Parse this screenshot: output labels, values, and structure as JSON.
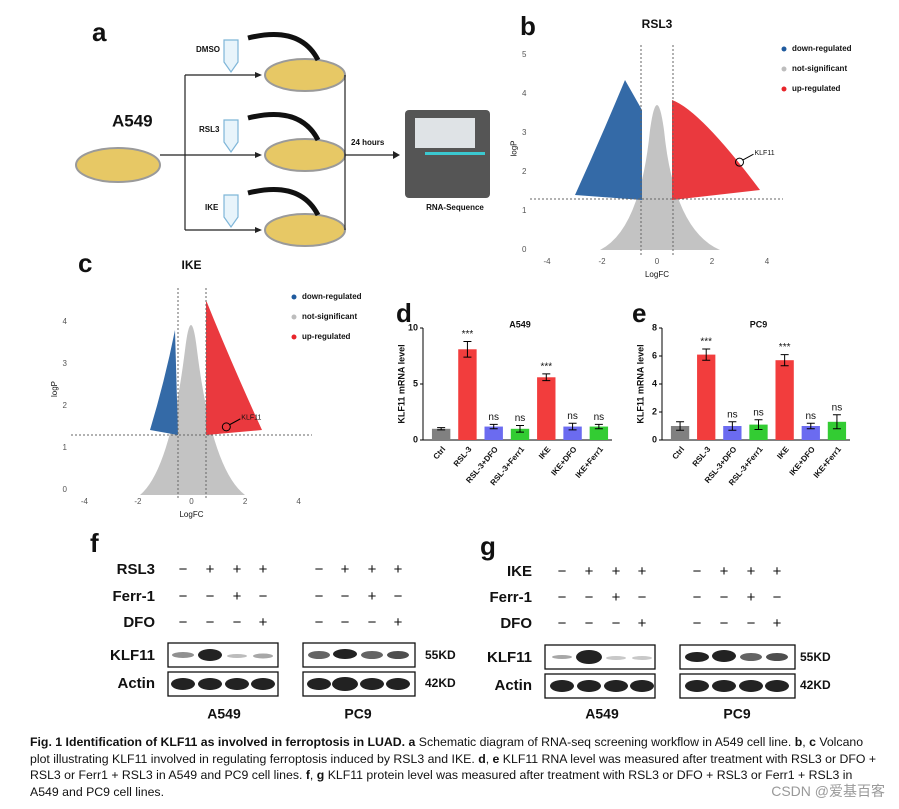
{
  "panel_labels": [
    "a",
    "b",
    "c",
    "d",
    "e",
    "f",
    "g"
  ],
  "schematic": {
    "cell_line": "A549",
    "treatments": [
      "DMSO",
      "RSL3",
      "IKE"
    ],
    "time": "24 hours",
    "output": "RNA-Sequence"
  },
  "chart_data": [
    {
      "type": "scatter",
      "title": "RSL3",
      "xlabel": "LogFC",
      "ylabel": "logP",
      "xlim": [
        -4.6,
        4.6
      ],
      "ylim": [
        0,
        5.2
      ],
      "xticks": [
        -4,
        -2,
        0,
        2,
        4
      ],
      "yticks": [
        0,
        1,
        2,
        3,
        4,
        5
      ],
      "series": [
        {
          "name": "down-regulated",
          "color": "#1f5a9e"
        },
        {
          "name": "not-significant",
          "color": "#bdbdbd"
        },
        {
          "name": "up-regulated",
          "color": "#e8242a"
        }
      ],
      "annotation": {
        "text": "KLF11",
        "x": 3.0,
        "y": 2.25
      }
    },
    {
      "type": "scatter",
      "title": "IKE",
      "xlabel": "LogFC",
      "ylabel": "logP",
      "xlim": [
        -4.5,
        4.5
      ],
      "ylim": [
        0,
        4.8
      ],
      "xticks": [
        -4,
        -2,
        0,
        2,
        4
      ],
      "yticks": [
        0,
        1,
        2,
        3,
        4
      ],
      "series": [
        {
          "name": "down-regulated",
          "color": "#1f5a9e"
        },
        {
          "name": "not-significant",
          "color": "#bdbdbd"
        },
        {
          "name": "up-regulated",
          "color": "#e8242a"
        }
      ],
      "annotation": {
        "text": "KLF11",
        "x": 1.3,
        "y": 1.5
      }
    },
    {
      "type": "bar",
      "title": "A549",
      "ylabel": "KLF11 mRNA level",
      "categories": [
        "Ctrl",
        "RSL-3",
        "RSL-3+DFO",
        "RSL-3+Ferr1",
        "IKE",
        "IKE+DFO",
        "IKE+Ferr1"
      ],
      "values": [
        1.0,
        8.1,
        1.2,
        1.0,
        5.6,
        1.2,
        1.2
      ],
      "errors": [
        0.1,
        0.7,
        0.2,
        0.3,
        0.3,
        0.3,
        0.2
      ],
      "colors": [
        "#808080",
        "#f23d3d",
        "#6b6bf0",
        "#33cc33",
        "#f23d3d",
        "#6b6bf0",
        "#33cc33"
      ],
      "sig_labels": [
        null,
        "***",
        "ns",
        "ns",
        "***",
        "ns",
        "ns"
      ],
      "ylim": [
        0,
        10
      ],
      "yticks": [
        0,
        5,
        10
      ]
    },
    {
      "type": "bar",
      "title": "PC9",
      "ylabel": "KLF11 mRNA level",
      "categories": [
        "Ctrl",
        "RSL-3",
        "RSL-3+DFO",
        "RSL-3+Ferr1",
        "IKE",
        "IKE+DFO",
        "IKE+Ferr1"
      ],
      "values": [
        1.0,
        6.1,
        1.0,
        1.1,
        5.7,
        1.0,
        1.3
      ],
      "errors": [
        0.3,
        0.4,
        0.3,
        0.35,
        0.4,
        0.2,
        0.5
      ],
      "colors": [
        "#808080",
        "#f23d3d",
        "#6b6bf0",
        "#33cc33",
        "#f23d3d",
        "#6b6bf0",
        "#33cc33"
      ],
      "sig_labels": [
        null,
        "***",
        "ns",
        "ns",
        "***",
        "ns",
        "ns"
      ],
      "ylim": [
        0,
        8
      ],
      "yticks": [
        0,
        2,
        4,
        6,
        8
      ]
    }
  ],
  "blots": [
    {
      "rows": [
        {
          "label": "RSL3",
          "signs": [
            "−",
            "+",
            "+",
            "+",
            "−",
            "+",
            "+",
            "+"
          ]
        },
        {
          "label": "Ferr-1",
          "signs": [
            "−",
            "−",
            "+",
            "−",
            "−",
            "−",
            "+",
            "−"
          ]
        },
        {
          "label": "DFO",
          "signs": [
            "−",
            "−",
            "−",
            "+",
            "−",
            "−",
            "−",
            "+"
          ]
        }
      ],
      "proteins": [
        "KLF11",
        "Actin"
      ],
      "sizes": [
        "55KD",
        "42KD"
      ],
      "cell_lines": [
        "A549",
        "PC9"
      ]
    },
    {
      "rows": [
        {
          "label": "IKE",
          "signs": [
            "−",
            "+",
            "+",
            "+",
            "−",
            "+",
            "+",
            "+"
          ]
        },
        {
          "label": "Ferr-1",
          "signs": [
            "−",
            "−",
            "+",
            "−",
            "−",
            "−",
            "+",
            "−"
          ]
        },
        {
          "label": "DFO",
          "signs": [
            "−",
            "−",
            "−",
            "+",
            "−",
            "−",
            "−",
            "+"
          ]
        }
      ],
      "proteins": [
        "KLF11",
        "Actin"
      ],
      "sizes": [
        "55KD",
        "42KD"
      ],
      "cell_lines": [
        "A549",
        "PC9"
      ]
    }
  ],
  "caption": [
    {
      "text": "Fig. 1 Identification of KLF11 as involved in ferroptosis in LUAD.",
      "bold": true
    },
    {
      "text": " a",
      "bold": true
    },
    {
      "text": " Schematic diagram of RNA-seq screening workflow in A549 cell line. ",
      "bold": false
    },
    {
      "text": "b",
      "bold": true
    },
    {
      "text": ", ",
      "bold": false
    },
    {
      "text": "c",
      "bold": true
    },
    {
      "text": " Volcano plot illustrating KLF11 involved in regulating ferroptosis induced by RSL3 and IKE. ",
      "bold": false
    },
    {
      "text": "d",
      "bold": true
    },
    {
      "text": ", ",
      "bold": false
    },
    {
      "text": "e",
      "bold": true
    },
    {
      "text": " KLF11 RNA level was measured after treatment with RSL3 or DFO + RSL3 or Ferr1 + RSL3 in A549 and PC9 cell lines. ",
      "bold": false
    },
    {
      "text": "f",
      "bold": true
    },
    {
      "text": ", ",
      "bold": false
    },
    {
      "text": "g",
      "bold": true
    },
    {
      "text": " KLF11 protein level was measured after treatment with RSL3 or DFO + RSL3 or Ferr1 + RSL3 in A549 and PC9 cell lines.",
      "bold": false
    }
  ],
  "watermark": "CSDN @爱基百客"
}
